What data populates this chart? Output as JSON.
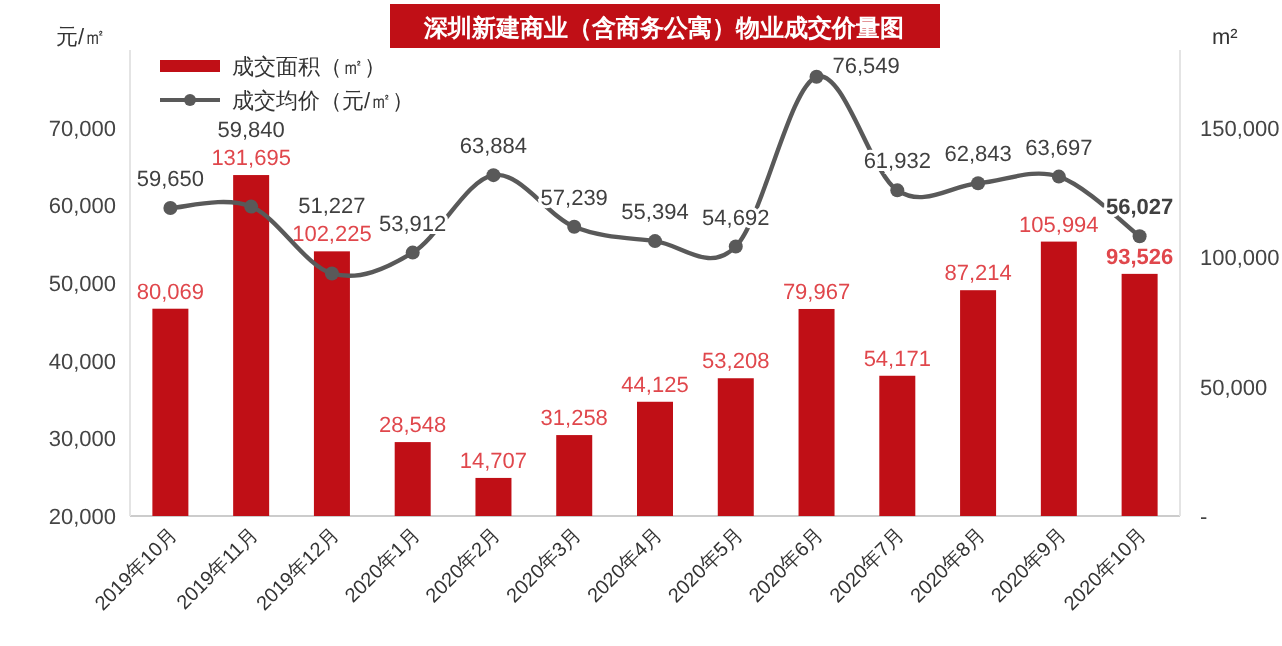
{
  "chart_data": {
    "type": "bar",
    "title": "深圳新建商业（含商务公寓）物业成交价量图",
    "ylabel": "元/㎡",
    "y2label": "m²",
    "categories": [
      "2019年10月",
      "2019年11月",
      "2019年12月",
      "2020年1月",
      "2020年2月",
      "2020年3月",
      "2020年4月",
      "2020年5月",
      "2020年6月",
      "2020年7月",
      "2020年8月",
      "2020年9月",
      "2020年10月"
    ],
    "series": [
      {
        "name": "成交面积（㎡）",
        "axis": "y2",
        "color": "#c00f16",
        "values": [
          80069,
          131695,
          102225,
          28548,
          14707,
          31258,
          44125,
          53208,
          79967,
          54171,
          87214,
          105994,
          93526
        ],
        "value_labels": [
          "80,069",
          "131,695",
          "102,225",
          "28,548",
          "14,707",
          "31,258",
          "44,125",
          "53,208",
          "79,967",
          "54,171",
          "87,214",
          "105,994",
          "93,526"
        ]
      },
      {
        "name": "成交均价（元/㎡）",
        "type": "line",
        "axis": "y",
        "color": "#595959",
        "marker": "circle",
        "values": [
          59650,
          59840,
          51227,
          53912,
          63884,
          57239,
          55394,
          54692,
          76549,
          61932,
          62843,
          63697,
          56027
        ],
        "value_labels": [
          "59,650",
          "59,840",
          "51,227",
          "53,912",
          "63,884",
          "57,239",
          "55,394",
          "54,692",
          "76,549",
          "61,932",
          "62,843",
          "63,697",
          "56,027"
        ]
      }
    ],
    "ylim": [
      20000,
      80000
    ],
    "yticks": [
      {
        "value": 20000,
        "label": "20,000"
      },
      {
        "value": 30000,
        "label": "30,000"
      },
      {
        "value": 40000,
        "label": "40,000"
      },
      {
        "value": 50000,
        "label": "50,000"
      },
      {
        "value": 60000,
        "label": "60,000"
      },
      {
        "value": 70000,
        "label": "70,000"
      }
    ],
    "y2lim": [
      0,
      180000
    ],
    "y2ticks": [
      {
        "value": 0,
        "label": "-"
      },
      {
        "value": 50000,
        "label": "50,000"
      },
      {
        "value": 100000,
        "label": "100,000"
      },
      {
        "value": 150000,
        "label": "150,000"
      }
    ],
    "legend": "top left",
    "grid": false
  }
}
